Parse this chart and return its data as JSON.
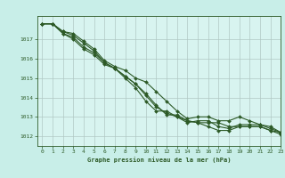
{
  "title": "Graphe pression niveau de la mer (hPa)",
  "background_color": "#c8eee8",
  "plot_bg_color": "#d8f4f0",
  "grid_color": "#b0c8c4",
  "line_color": "#2d5a27",
  "xlim": [
    -0.5,
    23
  ],
  "ylim": [
    1011.5,
    1018.2
  ],
  "yticks": [
    1012,
    1013,
    1014,
    1015,
    1016,
    1017
  ],
  "xticks": [
    0,
    1,
    2,
    3,
    4,
    5,
    6,
    7,
    8,
    9,
    10,
    11,
    12,
    13,
    14,
    15,
    16,
    17,
    18,
    19,
    20,
    21,
    22,
    23
  ],
  "series": [
    [
      1017.8,
      1017.8,
      1017.4,
      1017.2,
      1016.8,
      1016.4,
      1015.8,
      1015.5,
      1015.1,
      1014.7,
      1014.2,
      1013.6,
      1013.1,
      1013.1,
      1012.8,
      1012.7,
      1012.7,
      1012.7,
      1012.5,
      1012.5,
      1012.5,
      1012.5,
      1012.3,
      1012.2
    ],
    [
      1017.8,
      1017.8,
      1017.3,
      1017.1,
      1016.6,
      1016.3,
      1015.8,
      1015.5,
      1015.1,
      1014.7,
      1014.1,
      1013.5,
      1013.2,
      1013.0,
      1012.8,
      1012.7,
      1012.5,
      1012.3,
      1012.3,
      1012.5,
      1012.5,
      1012.5,
      1012.3,
      1012.1
    ],
    [
      1017.8,
      1017.8,
      1017.3,
      1017.0,
      1016.5,
      1016.2,
      1015.7,
      1015.5,
      1015.0,
      1014.5,
      1013.8,
      1013.3,
      1013.3,
      1013.0,
      1012.7,
      1012.8,
      1012.8,
      1012.5,
      1012.4,
      1012.6,
      1012.6,
      1012.6,
      1012.4,
      1012.2
    ],
    [
      1017.8,
      1017.8,
      1017.4,
      1017.3,
      1016.9,
      1016.5,
      1015.9,
      1015.6,
      1015.4,
      1015.0,
      1014.8,
      1014.3,
      1013.8,
      1013.3,
      1012.9,
      1013.0,
      1013.0,
      1012.8,
      1012.8,
      1013.0,
      1012.8,
      1012.6,
      1012.5,
      1012.2
    ]
  ]
}
